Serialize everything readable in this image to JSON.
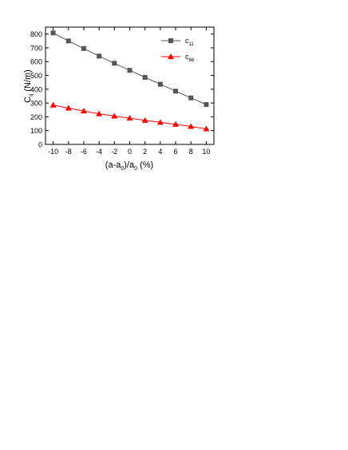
{
  "chart_data": {
    "type": "line",
    "xlabel": "(a-a0)/a0 (%)",
    "ylabel": "Cij (N/m)",
    "xlim": [
      -11,
      11
    ],
    "ylim": [
      0,
      850
    ],
    "xticks": [
      -10,
      -8,
      -6,
      -4,
      -2,
      0,
      2,
      4,
      6,
      8,
      10
    ],
    "yticks": [
      0,
      100,
      200,
      300,
      400,
      500,
      600,
      700,
      800
    ],
    "x": [
      -10,
      -8,
      -6,
      -4,
      -2,
      0,
      2,
      4,
      6,
      8,
      10
    ],
    "series": [
      {
        "name": "c11",
        "color": "#555555",
        "marker": "square",
        "values": [
          808,
          750,
          695,
          640,
          588,
          537,
          486,
          436,
          386,
          337,
          289
        ]
      },
      {
        "name": "c66",
        "color": "#ff0000",
        "marker": "triangle",
        "values": [
          285,
          263,
          242,
          222,
          205,
          190,
          174,
          160,
          145,
          130,
          113
        ]
      }
    ],
    "legend_position": "top-right",
    "grid": false
  }
}
